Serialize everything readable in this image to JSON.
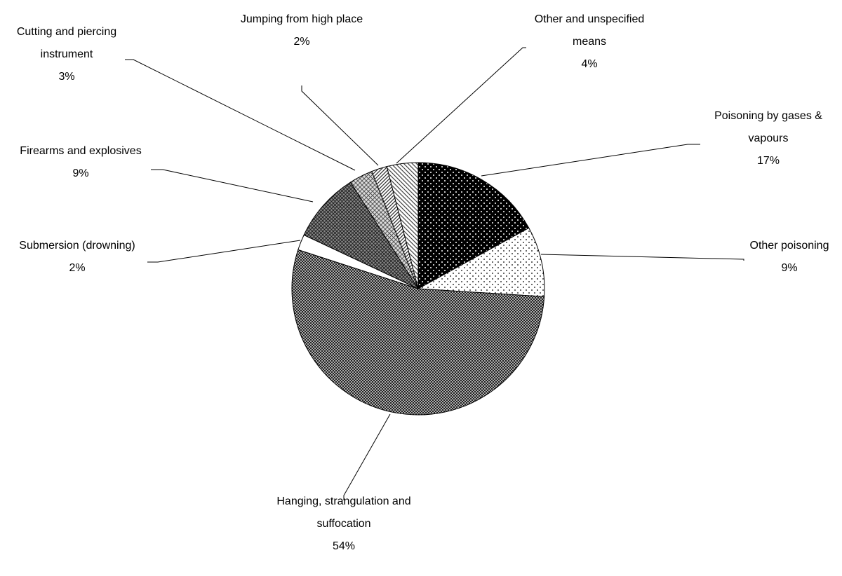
{
  "chart_data": {
    "type": "pie",
    "categories": [
      "Poisoning by gases & vapours",
      "Other poisoning",
      "Hanging, strangulation and suffocation",
      "Submersion (drowning)",
      "Firearms and explosives",
      "Cutting and piercing instrument",
      "Jumping from high place",
      "Other and unspecified means"
    ],
    "values": [
      17,
      9,
      54,
      2,
      9,
      3,
      2,
      4
    ],
    "value_labels": [
      "17%",
      "9%",
      "54%",
      "2%",
      "9%",
      "3%",
      "2%",
      "4%"
    ]
  }
}
